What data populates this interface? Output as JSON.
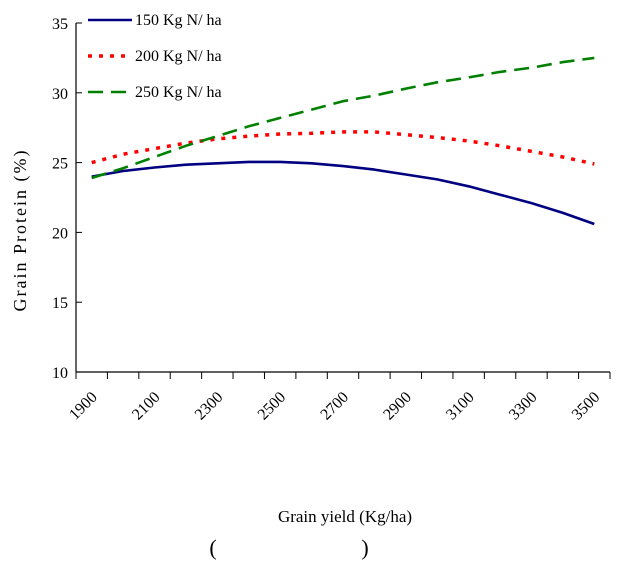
{
  "chart_data": {
    "type": "line",
    "title": "",
    "xlabel": "Grain yield (Kg/ha)",
    "ylabel": "Grain Protein (%)",
    "subtitle_brackets": [
      "(",
      ")"
    ],
    "xlim": [
      1900,
      3600
    ],
    "ylim": [
      10,
      35
    ],
    "yticks": [
      10,
      15,
      20,
      25,
      30,
      35
    ],
    "xticks": [
      1900,
      2100,
      2300,
      2500,
      2700,
      2900,
      3100,
      3300,
      3500
    ],
    "grid": false,
    "legend_position": "top-left",
    "series": [
      {
        "name": "150 Kg N/ ha",
        "color": "#000080",
        "style": "solid",
        "x": [
          1950,
          2050,
          2150,
          2250,
          2350,
          2450,
          2550,
          2650,
          2750,
          2850,
          2950,
          3050,
          3150,
          3250,
          3350,
          3450,
          3550
        ],
        "y": [
          24.0,
          24.4,
          24.65,
          24.85,
          24.95,
          25.05,
          25.05,
          24.95,
          24.75,
          24.5,
          24.15,
          23.8,
          23.3,
          22.7,
          22.1,
          21.4,
          20.6
        ]
      },
      {
        "name": "200 Kg N/ ha",
        "color": "#ff0000",
        "style": "dotted",
        "x": [
          1950,
          2050,
          2150,
          2250,
          2350,
          2450,
          2550,
          2650,
          2750,
          2850,
          2950,
          3050,
          3150,
          3250,
          3350,
          3450,
          3550
        ],
        "y": [
          25.0,
          25.6,
          26.0,
          26.4,
          26.7,
          26.9,
          27.05,
          27.1,
          27.2,
          27.2,
          27.0,
          26.8,
          26.55,
          26.2,
          25.8,
          25.4,
          24.9
        ]
      },
      {
        "name": "250 Kg N/ ha",
        "color": "#008000",
        "style": "dashed",
        "x": [
          1950,
          2050,
          2150,
          2250,
          2350,
          2450,
          2550,
          2650,
          2750,
          2850,
          2950,
          3050,
          3150,
          3250,
          3350,
          3450,
          3550
        ],
        "y": [
          23.9,
          24.6,
          25.4,
          26.2,
          26.9,
          27.6,
          28.2,
          28.8,
          29.4,
          29.8,
          30.3,
          30.75,
          31.1,
          31.5,
          31.8,
          32.2,
          32.5
        ]
      }
    ]
  }
}
